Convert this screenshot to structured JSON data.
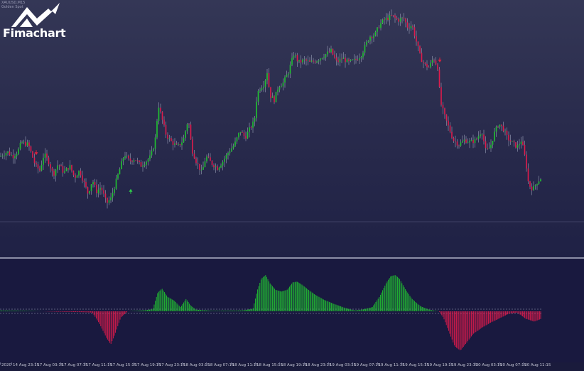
{
  "header": {
    "symbol": "XAUUSD,M15",
    "subtitle": "Golden Spot",
    "logo_text": "Fimachart"
  },
  "colors": {
    "bull": "#21c431",
    "bear": "#e01b4c",
    "arrow_up": "#2fd04a",
    "arrow_down": "#e0213f",
    "level_line": "#5c5f86"
  },
  "time_axis": {
    "labels": [
      "2020",
      "14 Aug 23:15",
      "17 Aug 03:15",
      "17 Aug 07:15",
      "17 Aug 11:15",
      "17 Aug 15:15",
      "17 Aug 19:15",
      "17 Aug 23:15",
      "18 Aug 03:15",
      "18 Aug 07:15",
      "18 Aug 11:15",
      "18 Aug 15:15",
      "18 Aug 19:15",
      "18 Aug 23:15",
      "19 Aug 03:15",
      "19 Aug 07:15",
      "19 Aug 11:15",
      "19 Aug 15:15",
      "19 Aug 19:15",
      "19 Aug 23:15",
      "20 Aug 03:15",
      "20 Aug 07:15",
      "20 Aug 11:15"
    ]
  },
  "chart_data": {
    "type": "candlestick",
    "symbol": "XAUUSD",
    "timeframe": "M15",
    "price_path": [
      [
        0,
        0.4
      ],
      [
        10,
        0.42
      ],
      [
        18,
        0.4
      ],
      [
        25,
        0.42
      ],
      [
        30,
        0.46
      ],
      [
        40,
        0.45
      ],
      [
        50,
        0.36
      ],
      [
        56,
        0.34
      ],
      [
        62,
        0.41
      ],
      [
        68,
        0.38
      ],
      [
        75,
        0.32
      ],
      [
        82,
        0.37
      ],
      [
        90,
        0.33
      ],
      [
        98,
        0.36
      ],
      [
        105,
        0.31
      ],
      [
        112,
        0.34
      ],
      [
        118,
        0.29
      ],
      [
        124,
        0.24
      ],
      [
        130,
        0.3
      ],
      [
        136,
        0.25
      ],
      [
        142,
        0.27
      ],
      [
        150,
        0.2
      ],
      [
        156,
        0.22
      ],
      [
        162,
        0.28
      ],
      [
        168,
        0.34
      ],
      [
        175,
        0.41
      ],
      [
        182,
        0.38
      ],
      [
        190,
        0.39
      ],
      [
        198,
        0.36
      ],
      [
        206,
        0.38
      ],
      [
        212,
        0.4
      ],
      [
        218,
        0.46
      ],
      [
        223,
        0.62
      ],
      [
        228,
        0.56
      ],
      [
        234,
        0.49
      ],
      [
        242,
        0.46
      ],
      [
        250,
        0.44
      ],
      [
        258,
        0.47
      ],
      [
        265,
        0.56
      ],
      [
        270,
        0.43
      ],
      [
        276,
        0.38
      ],
      [
        284,
        0.33
      ],
      [
        290,
        0.4
      ],
      [
        298,
        0.37
      ],
      [
        306,
        0.35
      ],
      [
        314,
        0.38
      ],
      [
        322,
        0.42
      ],
      [
        330,
        0.45
      ],
      [
        338,
        0.51
      ],
      [
        345,
        0.48
      ],
      [
        352,
        0.52
      ],
      [
        358,
        0.55
      ],
      [
        362,
        0.67
      ],
      [
        366,
        0.69
      ],
      [
        372,
        0.71
      ],
      [
        376,
        0.76
      ],
      [
        380,
        0.66
      ],
      [
        386,
        0.64
      ],
      [
        392,
        0.7
      ],
      [
        398,
        0.71
      ],
      [
        406,
        0.76
      ],
      [
        414,
        0.84
      ],
      [
        420,
        0.8
      ],
      [
        428,
        0.81
      ],
      [
        436,
        0.8
      ],
      [
        446,
        0.81
      ],
      [
        456,
        0.83
      ],
      [
        466,
        0.85
      ],
      [
        474,
        0.8
      ],
      [
        482,
        0.82
      ],
      [
        490,
        0.8
      ],
      [
        500,
        0.81
      ],
      [
        508,
        0.83
      ],
      [
        514,
        0.87
      ],
      [
        520,
        0.91
      ],
      [
        528,
        0.92
      ],
      [
        534,
        0.96
      ],
      [
        540,
        0.98
      ],
      [
        546,
        0.99
      ],
      [
        552,
        1.0
      ],
      [
        560,
        0.98
      ],
      [
        568,
        0.99
      ],
      [
        574,
        0.95
      ],
      [
        580,
        0.96
      ],
      [
        586,
        0.89
      ],
      [
        592,
        0.82
      ],
      [
        598,
        0.79
      ],
      [
        604,
        0.78
      ],
      [
        610,
        0.82
      ],
      [
        616,
        0.78
      ],
      [
        620,
        0.63
      ],
      [
        626,
        0.57
      ],
      [
        632,
        0.52
      ],
      [
        638,
        0.47
      ],
      [
        646,
        0.45
      ],
      [
        654,
        0.47
      ],
      [
        662,
        0.46
      ],
      [
        670,
        0.47
      ],
      [
        678,
        0.51
      ],
      [
        684,
        0.42
      ],
      [
        690,
        0.44
      ],
      [
        696,
        0.5
      ],
      [
        702,
        0.54
      ],
      [
        708,
        0.52
      ],
      [
        714,
        0.48
      ],
      [
        720,
        0.46
      ],
      [
        728,
        0.44
      ],
      [
        734,
        0.47
      ],
      [
        740,
        0.38
      ],
      [
        744,
        0.28
      ],
      [
        750,
        0.26
      ],
      [
        756,
        0.29
      ],
      [
        762,
        0.31
      ]
    ],
    "arrows": [
      {
        "direction": "down",
        "bar_x": 51
      },
      {
        "direction": "up",
        "bar_x": 184
      },
      {
        "direction": "down",
        "bar_x": 619
      }
    ],
    "oscillator": {
      "type": "histogram",
      "zero_level": 0,
      "profile": [
        [
          0,
          0.02
        ],
        [
          40,
          0.01
        ],
        [
          80,
          -0.01
        ],
        [
          115,
          -0.02
        ],
        [
          130,
          -0.03
        ],
        [
          140,
          -0.3
        ],
        [
          150,
          -0.65
        ],
        [
          156,
          -0.8
        ],
        [
          162,
          -0.55
        ],
        [
          170,
          -0.15
        ],
        [
          180,
          0.0
        ],
        [
          200,
          0.02
        ],
        [
          215,
          0.05
        ],
        [
          222,
          0.45
        ],
        [
          228,
          0.55
        ],
        [
          236,
          0.35
        ],
        [
          246,
          0.25
        ],
        [
          254,
          0.1
        ],
        [
          262,
          0.3
        ],
        [
          268,
          0.15
        ],
        [
          276,
          0.04
        ],
        [
          300,
          0.01
        ],
        [
          340,
          0.02
        ],
        [
          356,
          0.06
        ],
        [
          362,
          0.5
        ],
        [
          368,
          0.8
        ],
        [
          374,
          0.88
        ],
        [
          380,
          0.68
        ],
        [
          388,
          0.52
        ],
        [
          396,
          0.48
        ],
        [
          404,
          0.52
        ],
        [
          412,
          0.7
        ],
        [
          418,
          0.72
        ],
        [
          424,
          0.66
        ],
        [
          432,
          0.55
        ],
        [
          442,
          0.42
        ],
        [
          456,
          0.28
        ],
        [
          470,
          0.18
        ],
        [
          486,
          0.08
        ],
        [
          500,
          0.02
        ],
        [
          512,
          0.05
        ],
        [
          524,
          0.1
        ],
        [
          534,
          0.35
        ],
        [
          544,
          0.7
        ],
        [
          550,
          0.85
        ],
        [
          556,
          0.88
        ],
        [
          562,
          0.8
        ],
        [
          570,
          0.55
        ],
        [
          580,
          0.3
        ],
        [
          592,
          0.12
        ],
        [
          606,
          0.03
        ],
        [
          618,
          0.0
        ],
        [
          624,
          -0.15
        ],
        [
          632,
          -0.5
        ],
        [
          640,
          -0.85
        ],
        [
          648,
          -0.95
        ],
        [
          656,
          -0.78
        ],
        [
          666,
          -0.55
        ],
        [
          678,
          -0.4
        ],
        [
          690,
          -0.28
        ],
        [
          702,
          -0.18
        ],
        [
          716,
          -0.06
        ],
        [
          728,
          -0.03
        ],
        [
          740,
          -0.18
        ],
        [
          752,
          -0.25
        ],
        [
          762,
          -0.18
        ]
      ]
    }
  }
}
